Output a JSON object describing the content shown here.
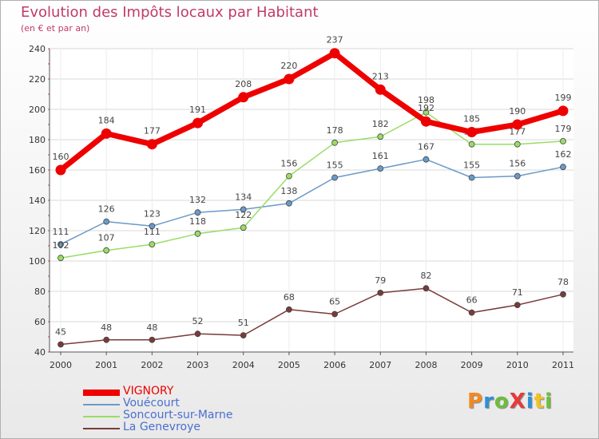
{
  "header": {
    "title": "Evolution des Impôts locaux par Habitant",
    "subtitle": "(en € et par an)"
  },
  "logo": {
    "text": "ProXiti",
    "colors": [
      "#f28a22",
      "#2d8fd6",
      "#6cbf3a",
      "#e63a3a",
      "#2d8fd6",
      "#f2c222",
      "#6cbf3a"
    ]
  },
  "chart_data": {
    "type": "line",
    "title": "Evolution des Impôts locaux par Habitant",
    "subtitle": "(en € et par an)",
    "xlabel": "",
    "ylabel": "",
    "ylim": [
      40,
      240
    ],
    "yticks": [
      40,
      60,
      80,
      100,
      120,
      140,
      160,
      180,
      200,
      220,
      240
    ],
    "categories": [
      "2000",
      "2001",
      "2002",
      "2003",
      "2004",
      "2005",
      "2006",
      "2007",
      "2008",
      "2009",
      "2010",
      "2011"
    ],
    "grid": "horizontal",
    "legend_position": "bottom-left",
    "series": [
      {
        "name": "VIGNORY",
        "color": "#ee0000",
        "bold": true,
        "values": [
          160,
          184,
          177,
          191,
          208,
          220,
          237,
          213,
          192,
          185,
          190,
          199
        ]
      },
      {
        "name": "Vouécourt",
        "color": "#6a9ac8",
        "bold": false,
        "values": [
          111,
          126,
          123,
          132,
          134,
          138,
          155,
          161,
          167,
          155,
          156,
          162
        ]
      },
      {
        "name": "Soncourt-sur-Marne",
        "color": "#99dd66",
        "bold": false,
        "values": [
          102,
          107,
          111,
          118,
          122,
          156,
          178,
          182,
          198,
          177,
          177,
          179
        ]
      },
      {
        "name": "La Genevroye",
        "color": "#7a3a3a",
        "bold": false,
        "values": [
          45,
          48,
          48,
          52,
          51,
          68,
          65,
          79,
          82,
          66,
          71,
          78
        ]
      }
    ]
  }
}
